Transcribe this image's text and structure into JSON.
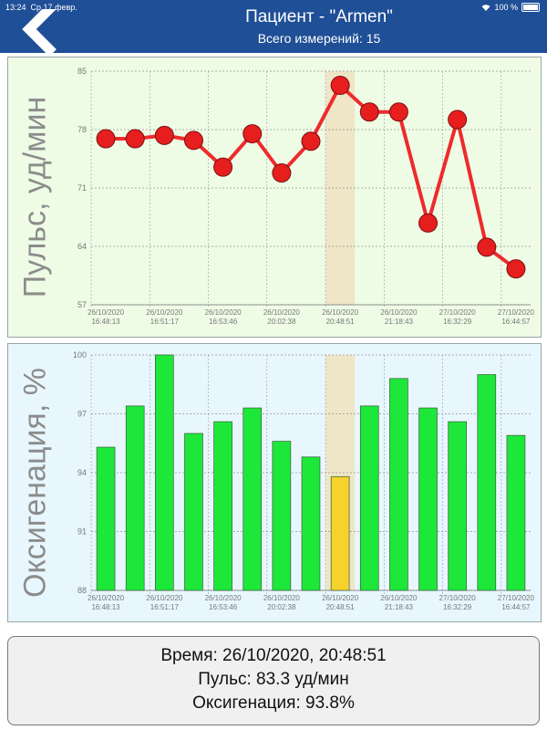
{
  "status_bar": {
    "time": "13:24",
    "date": "Ср 17 февр.",
    "battery": "100 %"
  },
  "header": {
    "title": "Пациент - \"Armen\"",
    "subtitle": "Всего измерений: 15",
    "back_icon": "chevron-left-icon"
  },
  "colors": {
    "header_bg": "#1f4f96",
    "pulse_line": "#ee2b2b",
    "pulse_point": "#e61e1e",
    "bar_normal": "#1de83a",
    "bar_selected": "#f5d22c",
    "highlight": "#efe6c8"
  },
  "chart_data": [
    {
      "type": "line",
      "ylabel": "Пульс, уд/мин",
      "ylim": [
        57,
        85
      ],
      "yticks": [
        "85",
        "78",
        "71",
        "64",
        "57"
      ],
      "grid": true,
      "selected_index": 8,
      "x_tick_labels": [
        {
          "date": "26/10/2020",
          "time": "16:48:13"
        },
        {
          "date": "26/10/2020",
          "time": "16:51:17"
        },
        {
          "date": "26/10/2020",
          "time": "16:53:46"
        },
        {
          "date": "26/10/2020",
          "time": "20:02:38"
        },
        {
          "date": "26/10/2020",
          "time": "20:48:51"
        },
        {
          "date": "26/10/2020",
          "time": "21:18:43"
        },
        {
          "date": "27/10/2020",
          "time": "16:32:29"
        },
        {
          "date": "27/10/2020",
          "time": "16:44:57"
        }
      ],
      "values": [
        76.9,
        76.9,
        77.3,
        76.7,
        73.5,
        77.5,
        72.8,
        76.6,
        83.3,
        80.1,
        80.1,
        66.8,
        79.2,
        63.9,
        61.3
      ]
    },
    {
      "type": "bar",
      "ylabel": "Оксигенация, %",
      "ylim": [
        88,
        100
      ],
      "yticks": [
        "100",
        "97",
        "94",
        "91",
        "88"
      ],
      "grid": true,
      "selected_index": 8,
      "x_tick_labels": [
        {
          "date": "26/10/2020",
          "time": "16:48:13"
        },
        {
          "date": "26/10/2020",
          "time": "16:51:17"
        },
        {
          "date": "26/10/2020",
          "time": "16:53:46"
        },
        {
          "date": "26/10/2020",
          "time": "20:02:38"
        },
        {
          "date": "26/10/2020",
          "time": "20:48:51"
        },
        {
          "date": "26/10/2020",
          "time": "21:18:43"
        },
        {
          "date": "27/10/2020",
          "time": "16:32:29"
        },
        {
          "date": "27/10/2020",
          "time": "16:44:57"
        }
      ],
      "values": [
        95.3,
        97.4,
        100,
        96.0,
        96.6,
        97.3,
        95.6,
        94.8,
        93.8,
        97.4,
        98.8,
        97.3,
        96.6,
        99.0,
        95.9
      ]
    }
  ],
  "info": {
    "time": "Время: 26/10/2020, 20:48:51",
    "pulse": "Пульс: 83.3 уд/мин",
    "oxygen": "Оксигенация: 93.8%"
  }
}
